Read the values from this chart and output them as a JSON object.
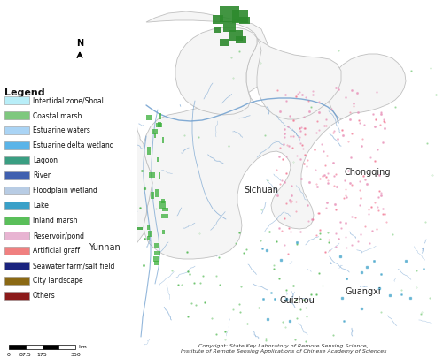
{
  "legend_title": "Legend",
  "legend_items": [
    {
      "label": "Intertidal zone/Shoal",
      "facecolor": "#b8eef8",
      "edgecolor": "#888888",
      "hatch": "..."
    },
    {
      "label": "Coastal marsh",
      "facecolor": "#7ec87e",
      "edgecolor": "#888888",
      "hatch": "..."
    },
    {
      "label": "Estuarine waters",
      "facecolor": "#aad4f5",
      "edgecolor": "#888888",
      "hatch": "..."
    },
    {
      "label": "Estuarine delta wetland",
      "facecolor": "#5ab4e8",
      "edgecolor": "#888888",
      "hatch": ""
    },
    {
      "label": "Lagoon",
      "facecolor": "#3a9e82",
      "edgecolor": "#888888",
      "hatch": ""
    },
    {
      "label": "River",
      "facecolor": "#4060b0",
      "edgecolor": "#888888",
      "hatch": "..."
    },
    {
      "label": "Floodplain wetland",
      "facecolor": "#b8cce4",
      "edgecolor": "#888888",
      "hatch": "..."
    },
    {
      "label": "Lake",
      "facecolor": "#3aa0c8",
      "edgecolor": "#888888",
      "hatch": ""
    },
    {
      "label": "Inland marsh",
      "facecolor": "#5abf5a",
      "edgecolor": "#888888",
      "hatch": "..."
    },
    {
      "label": "Reservoir/pond",
      "facecolor": "#e8b4d2",
      "edgecolor": "#888888",
      "hatch": ""
    },
    {
      "label": "Artificial graff",
      "facecolor": "#f08080",
      "edgecolor": "#888888",
      "hatch": "ooo"
    },
    {
      "label": "Seawater farm/salt field",
      "facecolor": "#1a237e",
      "edgecolor": "#888888",
      "hatch": ""
    },
    {
      "label": "City landscape",
      "facecolor": "#8B6914",
      "edgecolor": "#888888",
      "hatch": ""
    },
    {
      "label": "Others",
      "facecolor": "#8B1a1a",
      "edgecolor": "#888888",
      "hatch": ""
    }
  ],
  "copyright_text": "Copyright: State Key Laboratory of Remote Sensing Science,\nInstitute of Remote Sensing Applications of Chinese Academy of Sciences",
  "background_color": "#ffffff",
  "river_color": "#6699cc",
  "province_border_color": "#bbbbbb",
  "map_bg": "#ffffff",
  "scale_labels": [
    "0",
    "87.5",
    "175",
    "350"
  ],
  "scale_unit": "km",
  "province_names": [
    {
      "name": "Sichuan",
      "nx": 0.34,
      "ny": 0.62
    },
    {
      "name": "Chongqing",
      "nx": 0.71,
      "ny": 0.66
    },
    {
      "name": "Guizhou",
      "nx": 0.64,
      "ny": 0.42
    },
    {
      "name": "Yunnan",
      "nx": 0.24,
      "ny": 0.32
    },
    {
      "name": "Guangxi",
      "nx": 0.82,
      "ny": 0.2
    }
  ]
}
